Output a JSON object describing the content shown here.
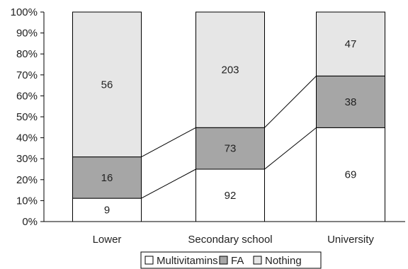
{
  "chart_data": {
    "type": "bar",
    "stacked": "percent",
    "categories": [
      "Lower",
      "Secondary school",
      "University"
    ],
    "series": [
      {
        "name": "Multivitamins",
        "values": [
          9,
          92,
          69
        ],
        "color": "#ffffff"
      },
      {
        "name": "FA",
        "values": [
          16,
          73,
          38
        ],
        "color": "#a6a6a6"
      },
      {
        "name": "Nothing",
        "values": [
          56,
          203,
          47
        ],
        "color": "#e6e6e6"
      }
    ],
    "yticks": [
      "0%",
      "10%",
      "20%",
      "30%",
      "40%",
      "50%",
      "60%",
      "70%",
      "80%",
      "90%",
      "100%"
    ],
    "ylim": [
      0,
      100
    ],
    "grid": false,
    "connector_lines": true,
    "legend_position": "bottom"
  }
}
